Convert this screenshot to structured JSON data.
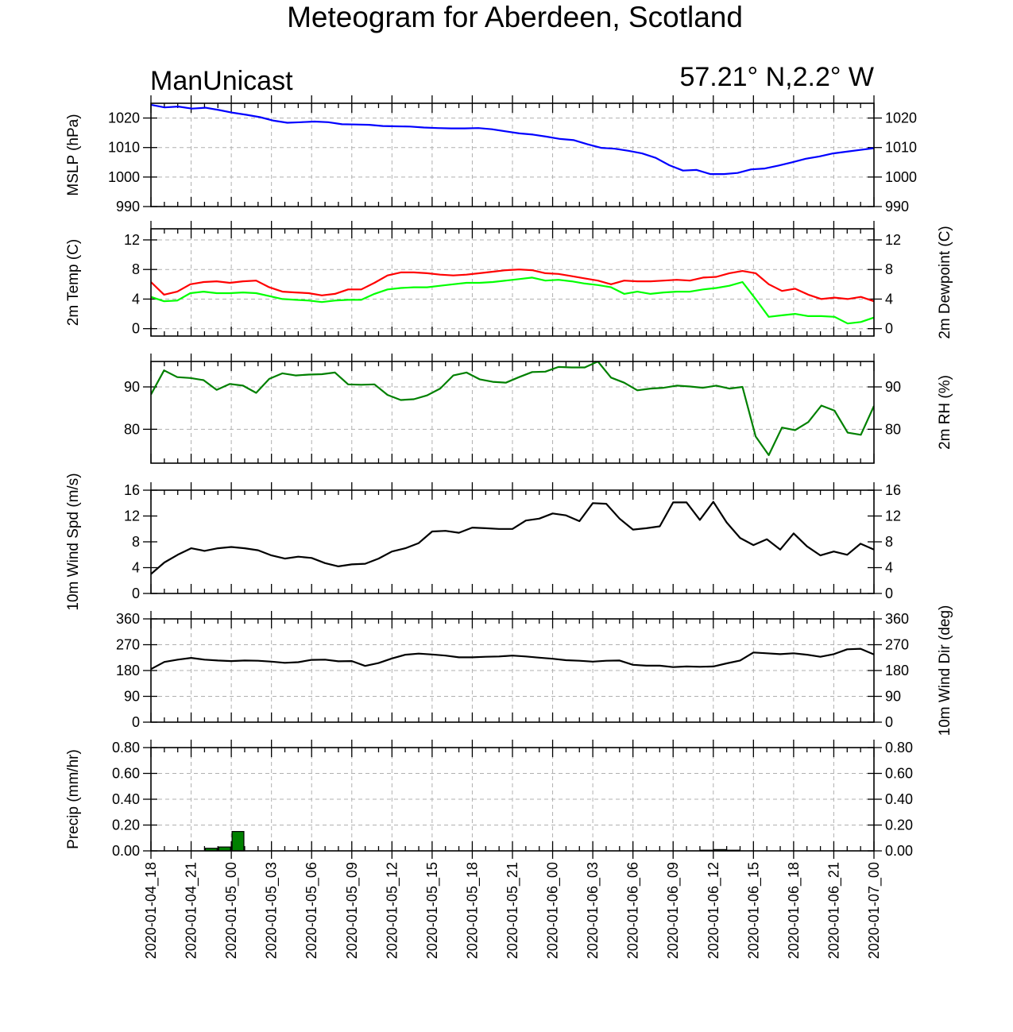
{
  "title": "Meteogram for Aberdeen, Scotland",
  "subtitle_left": "ManUnicast",
  "subtitle_right": "57.21° N,2.2° W",
  "x_tick_labels": [
    "2020-01-04_18",
    "2020-01-04_21",
    "2020-01-05_00",
    "2020-01-05_03",
    "2020-01-05_06",
    "2020-01-05_09",
    "2020-01-05_12",
    "2020-01-05_15",
    "2020-01-05_18",
    "2020-01-05_21",
    "2020-01-06_00",
    "2020-01-06_03",
    "2020-01-06_06",
    "2020-01-06_09",
    "2020-01-06_12",
    "2020-01-06_15",
    "2020-01-06_18",
    "2020-01-06_21",
    "2020-01-07_00"
  ],
  "chart_data": [
    {
      "type": "line",
      "ylabel": "MSLP (hPa)",
      "ylim": [
        990,
        1025
      ],
      "yticks": [
        990,
        1000,
        1010,
        1020
      ],
      "tick_labels": [
        "990",
        "1000",
        "1010",
        "1020"
      ],
      "right_labels": true,
      "grid": true,
      "series": [
        {
          "color": "#0000ff",
          "values": [
            1024.5,
            1023.6,
            1023.9,
            1023.2,
            1023.5,
            1022.7,
            1021.8,
            1021.1,
            1020.3,
            1019.1,
            1018.4,
            1018.6,
            1018.8,
            1018.6,
            1017.9,
            1017.8,
            1017.7,
            1017.3,
            1017.2,
            1017.1,
            1016.8,
            1016.6,
            1016.5,
            1016.5,
            1016.6,
            1016.2,
            1015.5,
            1014.8,
            1014.4,
            1013.7,
            1012.9,
            1012.5,
            1011.1,
            1009.9,
            1009.6,
            1008.9,
            1008.0,
            1006.5,
            1004.0,
            1002.2,
            1002.4,
            1001.0,
            1001.0,
            1001.4,
            1002.6,
            1002.9,
            1003.9,
            1005.0,
            1006.2,
            1007.0,
            1008.0,
            1008.6,
            1009.2,
            1009.8
          ]
        }
      ]
    },
    {
      "type": "line",
      "ylabel": "2m Temp (C)",
      "ylabel_right": "2m Dewpoint (C)",
      "ylim": [
        -1,
        13.5
      ],
      "yticks": [
        0,
        4,
        8,
        12
      ],
      "tick_labels": [
        "0",
        "4",
        "8",
        "12"
      ],
      "right_labels": true,
      "grid": true,
      "series": [
        {
          "color": "#ff0000",
          "values": [
            6.3,
            4.6,
            5.0,
            6.0,
            6.3,
            6.4,
            6.2,
            6.4,
            6.5,
            5.6,
            5.0,
            4.9,
            4.8,
            4.5,
            4.7,
            5.3,
            5.3,
            6.2,
            7.2,
            7.6,
            7.6,
            7.5,
            7.3,
            7.2,
            7.3,
            7.5,
            7.7,
            7.9,
            8.0,
            7.9,
            7.5,
            7.4,
            7.1,
            6.8,
            6.5,
            6.0,
            6.5,
            6.4,
            6.4,
            6.5,
            6.6,
            6.5,
            6.9,
            7.0,
            7.5,
            7.8,
            7.5,
            6.0,
            5.1,
            5.4,
            4.6,
            4.0,
            4.2,
            4.0,
            4.3,
            3.7
          ]
        },
        {
          "color": "#00ff00",
          "values": [
            4.3,
            3.7,
            3.8,
            4.8,
            5.0,
            4.8,
            4.8,
            4.9,
            4.8,
            4.4,
            4.0,
            3.9,
            3.8,
            3.6,
            3.8,
            3.9,
            3.9,
            4.7,
            5.3,
            5.5,
            5.6,
            5.6,
            5.8,
            6.0,
            6.2,
            6.2,
            6.3,
            6.5,
            6.7,
            6.9,
            6.5,
            6.6,
            6.4,
            6.1,
            5.9,
            5.6,
            4.7,
            5.0,
            4.7,
            4.9,
            5.0,
            5.0,
            5.3,
            5.5,
            5.8,
            6.3,
            4.0,
            1.6,
            1.8,
            2.0,
            1.7,
            1.7,
            1.6,
            0.7,
            0.9,
            1.5
          ]
        }
      ]
    },
    {
      "type": "line",
      "ylabel": "",
      "ylabel_right": "2m RH (%)",
      "ylim": [
        72,
        96
      ],
      "yticks": [
        80,
        90
      ],
      "tick_labels": [
        "80",
        "90"
      ],
      "right_labels": true,
      "grid": true,
      "series": [
        {
          "color": "#008000",
          "values": [
            88.2,
            93.9,
            92.3,
            92.1,
            91.6,
            89.3,
            90.7,
            90.3,
            88.6,
            91.9,
            93.2,
            92.7,
            92.9,
            93.0,
            93.4,
            90.6,
            90.5,
            90.6,
            88.1,
            86.9,
            87.1,
            88.0,
            89.6,
            92.7,
            93.4,
            91.8,
            91.2,
            91.0,
            92.3,
            93.5,
            93.6,
            94.7,
            94.6,
            94.6,
            96.0,
            92.2,
            91.0,
            89.2,
            89.6,
            89.8,
            90.3,
            90.1,
            89.8,
            90.3,
            89.6,
            90.0,
            78.3,
            73.9,
            80.4,
            79.8,
            81.7,
            85.6,
            84.4,
            79.2,
            78.7,
            85.5
          ]
        }
      ]
    },
    {
      "type": "line",
      "ylabel": "10m Wind Spd (m/s)",
      "ylim": [
        0,
        16
      ],
      "yticks": [
        0,
        4,
        8,
        12,
        16
      ],
      "tick_labels": [
        "0",
        "4",
        "8",
        "12",
        "16"
      ],
      "right_labels": true,
      "grid": false,
      "series": [
        {
          "color": "#000000",
          "values": [
            3.0,
            4.8,
            6.0,
            7.0,
            6.6,
            7.0,
            7.2,
            7.0,
            6.7,
            5.9,
            5.4,
            5.7,
            5.5,
            4.7,
            4.2,
            4.5,
            4.6,
            5.4,
            6.5,
            7.0,
            7.8,
            9.6,
            9.7,
            9.4,
            10.2,
            10.1,
            10.0,
            10.0,
            11.3,
            11.6,
            12.4,
            12.1,
            11.2,
            14.0,
            13.9,
            11.6,
            9.9,
            10.1,
            10.4,
            14.1,
            14.1,
            11.4,
            14.2,
            11.0,
            8.6,
            7.5,
            8.4,
            6.8,
            9.3,
            7.3,
            5.9,
            6.5,
            6.0,
            7.7,
            6.8
          ]
        }
      ]
    },
    {
      "type": "line",
      "ylabel": "",
      "ylabel_right": "10m Wind Dir (deg)",
      "ylim": [
        0,
        360
      ],
      "yticks": [
        0,
        90,
        180,
        270,
        360
      ],
      "tick_labels": [
        "0",
        "90",
        "180",
        "270",
        "360"
      ],
      "right_labels": true,
      "grid": true,
      "series": [
        {
          "color": "#000000",
          "values": [
            185,
            210,
            218,
            224,
            218,
            215,
            213,
            215,
            214,
            211,
            207,
            209,
            217,
            218,
            212,
            213,
            196,
            206,
            222,
            235,
            239,
            236,
            232,
            226,
            226,
            228,
            229,
            232,
            229,
            225,
            221,
            216,
            214,
            211,
            214,
            215,
            200,
            197,
            197,
            192,
            194,
            193,
            194,
            205,
            215,
            243,
            240,
            237,
            240,
            235,
            228,
            237,
            254,
            256,
            236
          ]
        }
      ]
    },
    {
      "type": "bar",
      "ylabel": "Precip (mm/hr)",
      "ylim": [
        0,
        0.8
      ],
      "yticks": [
        0,
        0.2,
        0.4,
        0.6,
        0.8
      ],
      "tick_labels": [
        "0.00",
        "0.20",
        "0.40",
        "0.60",
        "0.80"
      ],
      "right_labels": true,
      "grid": true,
      "bar_color": "#008000",
      "bars": [
        {
          "x": 4,
          "value": 0.02
        },
        {
          "x": 5,
          "value": 0.03
        },
        {
          "x": 6,
          "value": 0.15
        },
        {
          "x": 41,
          "value": 0.005
        },
        {
          "x": 42,
          "value": 0.01
        },
        {
          "x": 43,
          "value": 0.005
        }
      ]
    }
  ]
}
